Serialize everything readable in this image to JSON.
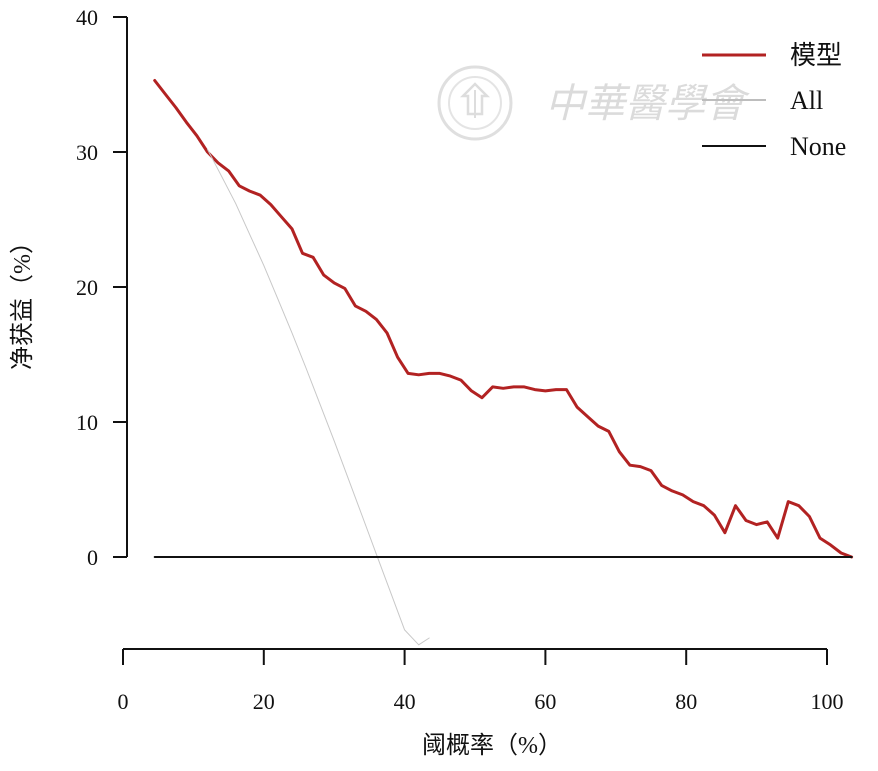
{
  "chart_data": {
    "type": "line",
    "xlabel": "阈概率（%）",
    "ylabel": "净获益（%）",
    "xlim": [
      0,
      100
    ],
    "ylim": [
      -6,
      40
    ],
    "x_ticks": [
      0,
      20,
      40,
      60,
      80,
      100
    ],
    "y_ticks": [
      0,
      10,
      20,
      30,
      40
    ],
    "legend_position": "top-right",
    "series": [
      {
        "name": "模型",
        "color": "#b22222",
        "x": [
          4.5,
          6,
          7.5,
          9,
          10.5,
          12,
          13.5,
          15,
          16.5,
          18,
          19.5,
          21,
          22.5,
          24,
          25.5,
          27,
          28.5,
          30,
          31.5,
          33,
          34.5,
          36,
          37.5,
          39,
          40.5,
          42,
          43.5,
          45,
          46.5,
          48,
          49.5,
          51,
          52.5,
          54,
          55.5,
          57,
          58.5,
          60,
          61.5,
          63,
          64.5,
          66,
          67.5,
          69,
          70.5,
          72,
          73.5,
          75,
          76.5,
          78,
          79.5,
          81,
          82.5,
          84,
          85.5,
          87,
          88.5,
          90,
          91.5,
          93,
          94.5,
          96,
          97.5,
          99,
          100.5,
          102,
          103.5
        ],
        "y": [
          35.3,
          34.3,
          33.3,
          32.2,
          31.2,
          30.0,
          29.2,
          28.6,
          27.5,
          27.1,
          26.8,
          26.1,
          25.2,
          24.3,
          22.5,
          22.2,
          20.9,
          20.3,
          19.9,
          18.6,
          18.2,
          17.6,
          16.6,
          14.8,
          13.6,
          13.5,
          13.6,
          13.6,
          13.4,
          13.1,
          12.3,
          11.8,
          12.6,
          12.5,
          12.6,
          12.6,
          12.4,
          12.3,
          12.4,
          12.4,
          11.1,
          10.4,
          9.7,
          9.3,
          7.8,
          6.8,
          6.7,
          6.4,
          5.3,
          4.9,
          4.6,
          4.1,
          3.8,
          3.1,
          1.8,
          3.8,
          2.7,
          2.4,
          2.6,
          1.4,
          4.1,
          3.8,
          3.0,
          1.4,
          0.9,
          0.3,
          0.0
        ]
      },
      {
        "name": "All",
        "color": "#c8c8c8",
        "x": [
          12,
          14,
          16,
          18,
          20,
          22,
          24,
          26,
          28,
          30,
          32,
          34,
          36,
          38,
          40,
          42,
          43.5
        ],
        "y": [
          30.2,
          28.2,
          26.2,
          23.9,
          21.6,
          19.1,
          16.6,
          14.0,
          11.3,
          8.6,
          5.8,
          3.0,
          0.2,
          -2.6,
          -5.4,
          -6.5,
          -6.0
        ]
      },
      {
        "name": "None",
        "color": "#111111",
        "x": [
          4.5,
          103.5
        ],
        "y": [
          0,
          0
        ]
      }
    ]
  },
  "watermark": {
    "text": "中華醫學會"
  }
}
